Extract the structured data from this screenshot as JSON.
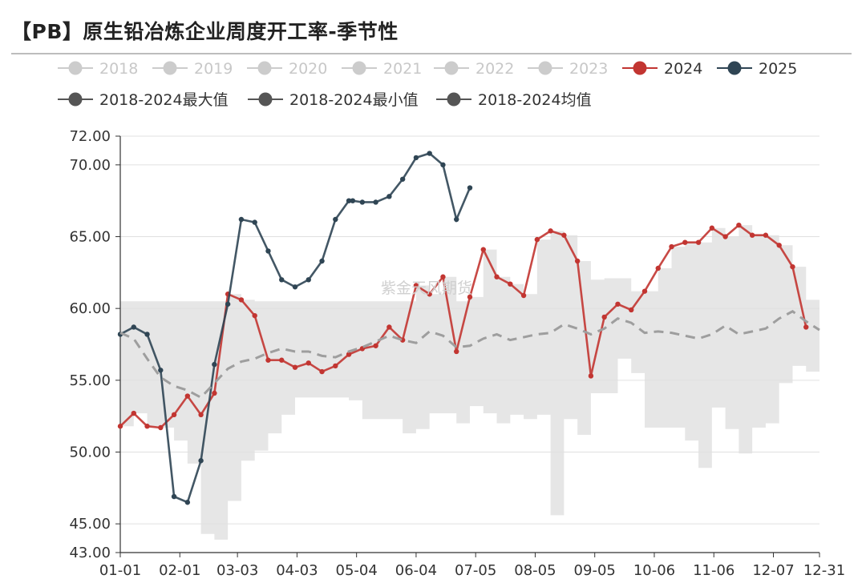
{
  "title": "【PB】原生铅冶炼企业周度开工率-季节性",
  "watermark": "紫金天风期货",
  "chart_data": {
    "type": "line",
    "title": "【PB】原生铅冶炼企业周度开工率-季节性",
    "xlabel": "",
    "ylabel": "",
    "y_ticks": [
      "43.00",
      "45.00",
      "50.00",
      "55.00",
      "60.00",
      "65.00",
      "70.00",
      "72.00"
    ],
    "y_tick_values": [
      43,
      45,
      50,
      55,
      60,
      65,
      70,
      72
    ],
    "ylim": [
      43,
      72
    ],
    "x_ticks": [
      "01-01",
      "02-01",
      "03-03",
      "04-03",
      "05-04",
      "06-04",
      "07-05",
      "08-05",
      "09-05",
      "10-06",
      "11-06",
      "12-07",
      "12-31"
    ],
    "x_tick_days": [
      0,
      31,
      61,
      92,
      123,
      154,
      185,
      216,
      247,
      278,
      309,
      340,
      364
    ],
    "xlim_days": [
      0,
      364
    ],
    "grid": "horizontal",
    "legend_position": "top",
    "legend": [
      {
        "name": "2018",
        "color": "#cccccc",
        "inactive": true
      },
      {
        "name": "2019",
        "color": "#cccccc",
        "inactive": true
      },
      {
        "name": "2020",
        "color": "#cccccc",
        "inactive": true
      },
      {
        "name": "2021",
        "color": "#cccccc",
        "inactive": true
      },
      {
        "name": "2022",
        "color": "#cccccc",
        "inactive": true
      },
      {
        "name": "2023",
        "color": "#cccccc",
        "inactive": true
      },
      {
        "name": "2024",
        "color": "#c23531",
        "inactive": false
      },
      {
        "name": "2025",
        "color": "#2f4554",
        "inactive": false
      },
      {
        "name": "2018-2024最大值",
        "color": "#555555",
        "inactive": false
      },
      {
        "name": "2018-2024最小值",
        "color": "#555555",
        "inactive": false
      },
      {
        "name": "2018-2024均值",
        "color": "#555555",
        "inactive": false
      }
    ],
    "series": [
      {
        "name": "2024",
        "color": "#c23531",
        "days": [
          0,
          7,
          14,
          21,
          28,
          35,
          42,
          49,
          56,
          63,
          70,
          77,
          84,
          91,
          98,
          105,
          112,
          119,
          126,
          133,
          140,
          147,
          154,
          161,
          168,
          175,
          182,
          189,
          196,
          203,
          210,
          217,
          224,
          231,
          238,
          245,
          252,
          259,
          266,
          273,
          280,
          287,
          294,
          301,
          308,
          315,
          322,
          329,
          336,
          343,
          350,
          357
        ],
        "values": [
          51.8,
          52.7,
          51.8,
          51.7,
          52.6,
          53.9,
          52.6,
          54.1,
          61.0,
          60.6,
          59.5,
          56.4,
          56.4,
          55.9,
          56.2,
          55.6,
          56.0,
          56.8,
          57.2,
          57.4,
          58.7,
          57.8,
          61.6,
          61.0,
          62.2,
          57.0,
          60.8,
          64.1,
          62.2,
          61.7,
          60.9,
          64.8,
          65.4,
          65.1,
          63.3,
          55.3,
          59.4,
          60.3,
          59.9,
          61.2,
          62.8,
          64.3,
          64.6,
          64.6,
          65.6,
          65.0,
          65.8,
          65.1,
          65.1,
          64.4,
          62.9,
          58.7
        ]
      },
      {
        "name": "2025",
        "color": "#2f4554",
        "days": [
          0,
          7,
          14,
          21,
          28,
          35,
          42,
          49,
          56,
          63,
          70,
          77,
          84,
          91,
          98,
          105,
          112,
          119,
          121,
          126,
          133,
          140,
          147,
          154,
          161,
          168,
          175,
          182
        ],
        "values": [
          58.2,
          58.7,
          58.2,
          55.7,
          46.9,
          46.5,
          49.4,
          56.1,
          60.3,
          66.2,
          66.0,
          64.0,
          62.0,
          61.5,
          62.0,
          63.3,
          66.2,
          67.5,
          67.5,
          67.4,
          67.4,
          67.8,
          69.0,
          70.5,
          70.8,
          70.0,
          66.2,
          68.4
        ]
      },
      {
        "name": "2018-2024均值",
        "color": "#9e9e9e",
        "dashed": true,
        "days": [
          0,
          7,
          14,
          21,
          28,
          35,
          42,
          49,
          56,
          63,
          70,
          77,
          84,
          91,
          98,
          105,
          112,
          119,
          126,
          133,
          140,
          147,
          154,
          161,
          168,
          175,
          182,
          189,
          196,
          203,
          210,
          217,
          224,
          231,
          238,
          245,
          252,
          259,
          266,
          273,
          280,
          287,
          294,
          301,
          308,
          315,
          322,
          329,
          336,
          343,
          350,
          357,
          364
        ],
        "values": [
          58.3,
          57.9,
          56.5,
          55.2,
          54.6,
          54.3,
          53.8,
          54.8,
          55.8,
          56.3,
          56.5,
          56.9,
          57.2,
          57.0,
          57.0,
          56.7,
          56.6,
          57.0,
          57.3,
          57.7,
          58.1,
          57.8,
          57.6,
          58.4,
          58.1,
          57.3,
          57.4,
          57.9,
          58.2,
          57.8,
          58.0,
          58.2,
          58.3,
          58.9,
          58.6,
          58.2,
          58.6,
          59.3,
          59.0,
          58.3,
          58.4,
          58.3,
          58.1,
          57.9,
          58.2,
          58.8,
          58.2,
          58.4,
          58.6,
          59.3,
          59.8,
          59.1,
          58.5
        ]
      },
      {
        "name": "2018-2024最大值",
        "color": "#e6e6e6",
        "band_upper": true,
        "days": [
          0,
          7,
          14,
          21,
          28,
          35,
          42,
          49,
          56,
          63,
          70,
          77,
          84,
          91,
          98,
          105,
          112,
          119,
          126,
          133,
          140,
          147,
          154,
          161,
          168,
          175,
          182,
          189,
          196,
          203,
          210,
          217,
          224,
          231,
          238,
          245,
          252,
          259,
          266,
          273,
          280,
          287,
          294,
          301,
          308,
          315,
          322,
          329,
          336,
          343,
          350,
          357,
          364
        ],
        "values": [
          60.5,
          60.5,
          60.5,
          60.5,
          60.5,
          60.5,
          60.5,
          60.5,
          61.0,
          60.6,
          60.5,
          60.5,
          60.5,
          60.5,
          60.5,
          60.5,
          60.5,
          60.5,
          60.5,
          60.5,
          60.5,
          60.5,
          61.6,
          61.0,
          62.2,
          60.5,
          60.8,
          64.1,
          62.2,
          61.7,
          61.0,
          64.8,
          65.4,
          65.1,
          63.3,
          62.0,
          62.1,
          62.1,
          61.2,
          61.2,
          62.8,
          64.3,
          64.6,
          64.6,
          65.6,
          65.0,
          65.8,
          65.1,
          65.1,
          64.4,
          62.9,
          60.6,
          61.4
        ]
      },
      {
        "name": "2018-2024最小值",
        "color": "#e6e6e6",
        "band_lower": true,
        "days": [
          0,
          7,
          14,
          21,
          28,
          35,
          42,
          49,
          56,
          63,
          70,
          77,
          84,
          91,
          98,
          105,
          112,
          119,
          126,
          133,
          140,
          147,
          154,
          161,
          168,
          175,
          182,
          189,
          196,
          203,
          210,
          217,
          224,
          231,
          238,
          245,
          252,
          259,
          266,
          273,
          280,
          287,
          294,
          301,
          308,
          315,
          322,
          329,
          336,
          343,
          350,
          357,
          364
        ],
        "values": [
          51.8,
          52.7,
          51.8,
          51.7,
          50.8,
          49.2,
          44.3,
          43.9,
          46.6,
          49.4,
          50.1,
          51.3,
          52.6,
          53.8,
          53.8,
          53.8,
          53.8,
          53.6,
          52.3,
          52.3,
          52.3,
          51.3,
          51.6,
          52.7,
          52.7,
          52.0,
          53.2,
          52.7,
          52.0,
          52.6,
          52.3,
          52.6,
          45.6,
          52.3,
          51.2,
          54.1,
          54.1,
          56.5,
          55.5,
          51.7,
          51.7,
          51.7,
          50.8,
          48.9,
          53.1,
          51.6,
          49.9,
          51.7,
          52.0,
          54.8,
          56.0,
          55.6,
          52.9
        ]
      }
    ]
  }
}
